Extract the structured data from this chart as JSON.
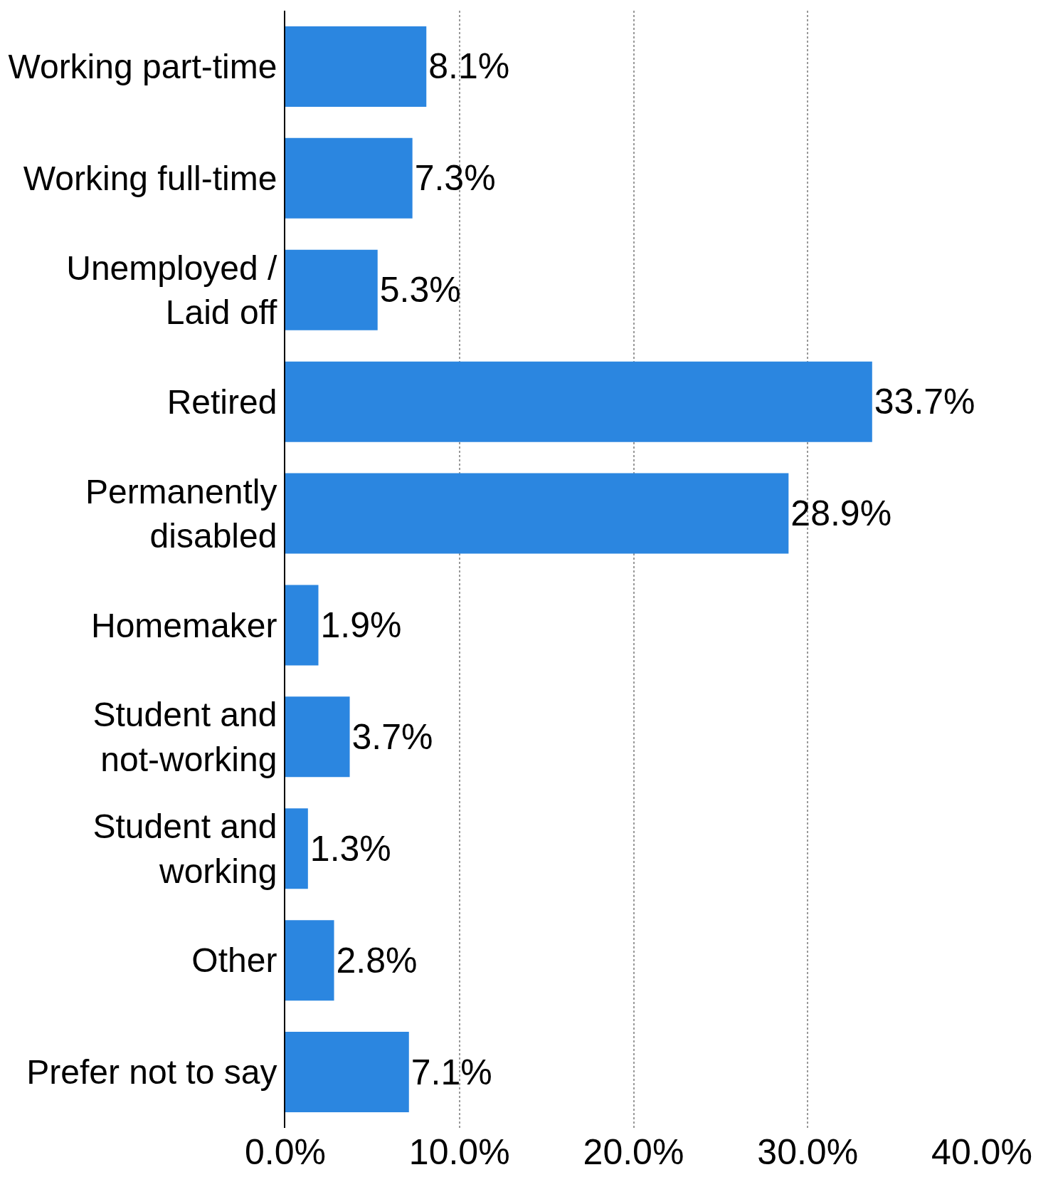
{
  "chart_data": {
    "type": "bar",
    "orientation": "horizontal",
    "categories": [
      "Working part-time",
      "Working full-time",
      "Unemployed / Laid off",
      "Retired",
      "Permanently disabled",
      "Homemaker",
      "Student and not-working",
      "Student and working",
      "Other",
      "Prefer not to say"
    ],
    "values": [
      8.1,
      7.3,
      5.3,
      33.7,
      28.9,
      1.9,
      3.7,
      1.3,
      2.8,
      7.1
    ],
    "value_labels": [
      "8.1%",
      "7.3%",
      "5.3%",
      "33.7%",
      "28.9%",
      "1.9%",
      "3.7%",
      "1.3%",
      "2.8%",
      "7.1%"
    ],
    "color": "#2b86e0",
    "xlim": [
      0,
      40
    ],
    "xticks": [
      {
        "value": 0,
        "label": "0.0%"
      },
      {
        "value": 10,
        "label": "10.0%"
      },
      {
        "value": 20,
        "label": "20.0%"
      },
      {
        "value": 30,
        "label": "30.0%"
      },
      {
        "value": 40,
        "label": "40.0%"
      }
    ],
    "grid": "x"
  }
}
